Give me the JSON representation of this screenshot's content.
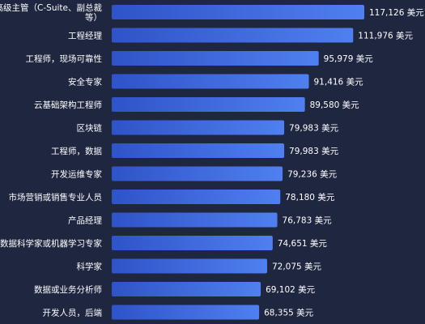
{
  "chart_data": {
    "type": "bar",
    "orientation": "horizontal",
    "categories": [
      "高级主管（C-Suite、副总裁等）",
      "工程经理",
      "工程师，现场可靠性",
      "安全专家",
      "云基础架构工程师",
      "区块链",
      "工程师，数据",
      "开发运维专家",
      "市场营销或销售专业人员",
      "产品经理",
      "数据科学家或机器学习专家",
      "科学家",
      "数据或业务分析师",
      "开发人员，后端"
    ],
    "category_lines": [
      [
        "高级主管（C-Suite、副总裁",
        "等）"
      ],
      [
        "工程经理"
      ],
      [
        "工程师，现场可靠性"
      ],
      [
        "安全专家"
      ],
      [
        "云基础架构工程师"
      ],
      [
        "区块链"
      ],
      [
        "工程师，数据"
      ],
      [
        "开发运维专家"
      ],
      [
        "市场营销或销售专业人员"
      ],
      [
        "产品经理"
      ],
      [
        "数据科学家或机器学习专家"
      ],
      [
        "科学家"
      ],
      [
        "数据或业务分析师"
      ],
      [
        "开发人员，后端"
      ]
    ],
    "values": [
      117126,
      111976,
      95979,
      91416,
      89580,
      79983,
      79983,
      79236,
      78180,
      76783,
      74651,
      72075,
      69102,
      68355
    ],
    "value_labels": [
      "117,126 美元",
      "111,976 美元",
      "95,979 美元",
      "91,416 美元",
      "89,580 美元",
      "79,983 美元",
      "79,983 美元",
      "79,236 美元",
      "78,180 美元",
      "76,783 美元",
      "74,651 美元",
      "72,075 美元",
      "69,102 美元",
      "68,355 美元"
    ],
    "xlim": [
      0,
      117126
    ],
    "grid": false,
    "legend": "none",
    "colors": {
      "background": "#1f2640",
      "bar_start": "#2f53c8",
      "bar_end": "#4f7ff0",
      "text": "#ffffff"
    }
  }
}
